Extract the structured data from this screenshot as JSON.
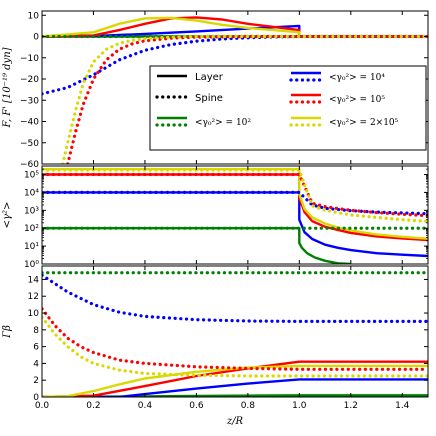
{
  "chart_data": [
    {
      "type": "line",
      "panel": "top",
      "ylabel": "F, F' [10⁻¹⁹ dyn]",
      "xlim": [
        0.0,
        1.5
      ],
      "ylim": [
        -60,
        12
      ],
      "yticks": [
        10,
        0,
        -10,
        -20,
        -30,
        -40,
        -50,
        -60
      ],
      "ytick_labels": [
        "10",
        "0",
        "−10",
        "−20",
        "−30",
        "−40",
        "−50",
        "−60"
      ],
      "legend": {
        "placement": "lower-right",
        "entries": [
          {
            "label": "Layer",
            "style": "solid",
            "color": "#000000"
          },
          {
            "label": "Spine",
            "style": "dotted",
            "color": "#000000"
          },
          {
            "label": "<γ₀²> = 10²",
            "style": "both",
            "color": "#008000"
          },
          {
            "label": "<γ₀²> = 10⁴",
            "style": "both",
            "color": "#0000ff"
          },
          {
            "label": "<γ₀²> = 10⁵",
            "style": "both",
            "color": "#ff0000"
          },
          {
            "label": "<γ₀²> = 2×10⁵",
            "style": "both",
            "color": "#d9d900"
          }
        ]
      },
      "series": [
        {
          "color": "#008000",
          "style": "solid",
          "x": [
            0,
            1.0,
            1.0,
            1.5
          ],
          "y": [
            0,
            0,
            0,
            0
          ]
        },
        {
          "color": "#0000ff",
          "style": "solid",
          "x": [
            0,
            0.2,
            0.4,
            0.6,
            0.8,
            1.0,
            1.0,
            1.5
          ],
          "y": [
            0,
            0.2,
            1.2,
            2.4,
            3.7,
            5,
            0,
            0
          ]
        },
        {
          "color": "#ff0000",
          "style": "solid",
          "x": [
            0,
            0.2,
            0.3,
            0.4,
            0.5,
            0.6,
            0.7,
            0.8,
            0.9,
            1.0,
            1.0,
            1.5
          ],
          "y": [
            0,
            0.5,
            3,
            6,
            8.5,
            9,
            8,
            6,
            4.5,
            3,
            0,
            0
          ]
        },
        {
          "color": "#d9d900",
          "style": "solid",
          "x": [
            0,
            0.2,
            0.3,
            0.4,
            0.5,
            0.6,
            0.7,
            0.8,
            0.9,
            1.0,
            1.0,
            1.5
          ],
          "y": [
            0,
            2,
            6,
            8.5,
            8.8,
            7.5,
            5.5,
            4,
            3,
            2,
            0,
            0
          ]
        },
        {
          "color": "#008000",
          "style": "dotted",
          "x": [
            0,
            0.5,
            1.0,
            1.5
          ],
          "y": [
            0,
            0,
            0,
            0
          ]
        },
        {
          "color": "#0000ff",
          "style": "dotted",
          "x": [
            0,
            0.1,
            0.2,
            0.3,
            0.4,
            0.5,
            0.6,
            0.7,
            0.8,
            0.9,
            1.0,
            1.5
          ],
          "y": [
            -27,
            -24,
            -18,
            -11,
            -6.5,
            -3.8,
            -2.2,
            -1.2,
            -0.6,
            -0.2,
            0,
            0
          ]
        },
        {
          "color": "#ff0000",
          "style": "dotted",
          "x": [
            0.1,
            0.13,
            0.16,
            0.2,
            0.25,
            0.3,
            0.35,
            0.4,
            0.5,
            0.6,
            0.8,
            1.0,
            1.5
          ],
          "y": [
            -60,
            -45,
            -32,
            -20,
            -11,
            -6,
            -3.5,
            -2,
            -0.8,
            -0.3,
            0,
            0,
            0
          ]
        },
        {
          "color": "#d9d900",
          "style": "dotted",
          "x": [
            0.08,
            0.1,
            0.13,
            0.16,
            0.2,
            0.25,
            0.3,
            0.35,
            0.4,
            0.5,
            0.6,
            0.8,
            1.0,
            1.5
          ],
          "y": [
            -60,
            -50,
            -35,
            -22,
            -12,
            -6,
            -3.2,
            -1.8,
            -1,
            -0.3,
            0,
            0,
            0,
            0
          ]
        }
      ]
    },
    {
      "type": "line",
      "panel": "middle",
      "ylabel": "<γ²>",
      "xlim": [
        0.0,
        1.5
      ],
      "ylim": [
        1,
        300000
      ],
      "yscale": "log",
      "yticks": [
        1,
        10,
        100,
        1000,
        10000,
        100000
      ],
      "ytick_labels": [
        "10⁰",
        "10¹",
        "10²",
        "10³",
        "10⁴",
        "10⁵"
      ],
      "series": [
        {
          "color": "#008000",
          "style": "solid",
          "x": [
            0,
            1.0,
            1.0,
            1.01,
            1.03,
            1.06,
            1.1,
            1.15,
            1.2
          ],
          "y": [
            100,
            100,
            15,
            8,
            4,
            2.3,
            1.5,
            1.1,
            1.0
          ]
        },
        {
          "color": "#0000ff",
          "style": "solid",
          "x": [
            0,
            1.0,
            1.0,
            1.02,
            1.05,
            1.1,
            1.15,
            1.2,
            1.3,
            1.4,
            1.5
          ],
          "y": [
            10000,
            10000,
            300,
            60,
            25,
            12,
            8,
            6,
            4,
            3.3,
            2.8
          ]
        },
        {
          "color": "#ff0000",
          "style": "solid",
          "x": [
            0,
            1.0,
            1.0,
            1.02,
            1.05,
            1.1,
            1.15,
            1.2,
            1.3,
            1.4,
            1.5
          ],
          "y": [
            100000,
            100000,
            5000,
            800,
            250,
            120,
            80,
            55,
            35,
            27,
            22
          ]
        },
        {
          "color": "#d9d900",
          "style": "solid",
          "x": [
            0,
            1.0,
            1.0,
            1.02,
            1.05,
            1.1,
            1.15,
            1.2,
            1.3,
            1.4,
            1.5
          ],
          "y": [
            200000,
            200000,
            8000,
            1200,
            400,
            180,
            110,
            75,
            45,
            33,
            26
          ]
        },
        {
          "color": "#008000",
          "style": "dotted",
          "x": [
            0,
            1.0,
            1.5
          ],
          "y": [
            100,
            100,
            100
          ]
        },
        {
          "color": "#0000ff",
          "style": "dotted",
          "x": [
            0,
            1.0,
            1.05,
            1.1,
            1.2,
            1.3,
            1.4,
            1.5
          ],
          "y": [
            10000,
            10000,
            2000,
            1300,
            950,
            800,
            720,
            650
          ]
        },
        {
          "color": "#ff0000",
          "style": "dotted",
          "x": [
            0,
            1.0,
            1.05,
            1.1,
            1.2,
            1.3,
            1.4,
            1.5
          ],
          "y": [
            100000,
            100000,
            2500,
            1600,
            1000,
            750,
            600,
            500
          ]
        },
        {
          "color": "#d9d900",
          "style": "dotted",
          "x": [
            0,
            1.0,
            1.05,
            1.1,
            1.2,
            1.3,
            1.4,
            1.5
          ],
          "y": [
            180000,
            180000,
            1800,
            1000,
            550,
            400,
            300,
            240
          ]
        }
      ]
    },
    {
      "type": "line",
      "panel": "bottom",
      "ylabel": "Γβ",
      "xlabel": "z/R",
      "xlim": [
        0.0,
        1.5
      ],
      "ylim": [
        0,
        15.6
      ],
      "xticks": [
        0.0,
        0.2,
        0.4,
        0.6,
        0.8,
        1.0,
        1.2,
        1.4
      ],
      "xtick_labels": [
        "0.0",
        "0.2",
        "0.4",
        "0.6",
        "0.8",
        "1.0",
        "1.2",
        "1.4"
      ],
      "yticks": [
        0,
        2,
        4,
        6,
        8,
        10,
        12,
        14
      ],
      "ytick_labels": [
        "0",
        "2",
        "4",
        "6",
        "8",
        "10",
        "12",
        "14"
      ],
      "series": [
        {
          "color": "#008000",
          "style": "solid",
          "x": [
            0,
            0.3,
            0.6,
            1.0,
            1.5
          ],
          "y": [
            0,
            0.05,
            0.12,
            0.2,
            0.2
          ]
        },
        {
          "color": "#0000ff",
          "style": "solid",
          "x": [
            0,
            0.3,
            0.4,
            0.6,
            0.8,
            1.0,
            1.5
          ],
          "y": [
            0,
            0,
            0.35,
            1.0,
            1.6,
            2.1,
            2.1
          ]
        },
        {
          "color": "#ff0000",
          "style": "solid",
          "x": [
            0,
            0.2,
            0.4,
            0.6,
            0.8,
            1.0,
            1.5
          ],
          "y": [
            0,
            0.15,
            1.3,
            2.5,
            3.4,
            4.2,
            4.2
          ]
        },
        {
          "color": "#d9d900",
          "style": "solid",
          "x": [
            0,
            0.1,
            0.2,
            0.3,
            0.4,
            0.6,
            0.8,
            1.0,
            1.5
          ],
          "y": [
            0,
            0.1,
            0.7,
            1.5,
            2.2,
            3.0,
            3.5,
            3.7,
            3.7
          ]
        },
        {
          "color": "#008000",
          "style": "dotted",
          "x": [
            0,
            1.0,
            1.5
          ],
          "y": [
            14.8,
            14.8,
            14.8
          ]
        },
        {
          "color": "#0000ff",
          "style": "dotted",
          "x": [
            0,
            0.1,
            0.2,
            0.3,
            0.4,
            0.6,
            0.8,
            1.0,
            1.5
          ],
          "y": [
            14.5,
            12.5,
            11.0,
            10.1,
            9.6,
            9.2,
            9.05,
            9.0,
            9.0
          ]
        },
        {
          "color": "#ff0000",
          "style": "dotted",
          "x": [
            0,
            0.05,
            0.1,
            0.15,
            0.2,
            0.3,
            0.4,
            0.6,
            0.8,
            1.0,
            1.5
          ],
          "y": [
            10.5,
            8.5,
            7.0,
            6.0,
            5.3,
            4.4,
            4.0,
            3.6,
            3.4,
            3.3,
            3.3
          ]
        },
        {
          "color": "#d9d900",
          "style": "dotted",
          "x": [
            0,
            0.05,
            0.1,
            0.15,
            0.2,
            0.3,
            0.4,
            0.6,
            0.8,
            1.0,
            1.5
          ],
          "y": [
            9.5,
            7.5,
            6.0,
            4.8,
            4.0,
            3.2,
            2.8,
            2.6,
            2.5,
            2.5,
            2.5
          ]
        }
      ]
    }
  ]
}
